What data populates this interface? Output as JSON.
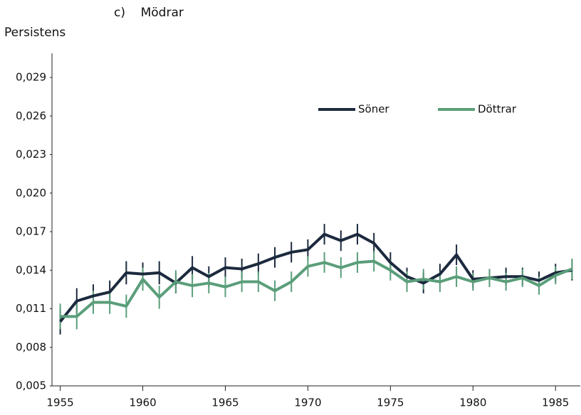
{
  "chart_data": {
    "type": "line",
    "title": "c)    Mödrar",
    "y_label": "Persistens",
    "x": [
      1955,
      1956,
      1957,
      1958,
      1959,
      1960,
      1961,
      1962,
      1963,
      1964,
      1965,
      1966,
      1967,
      1968,
      1969,
      1970,
      1971,
      1972,
      1973,
      1974,
      1975,
      1976,
      1977,
      1978,
      1979,
      1980,
      1981,
      1982,
      1983,
      1984,
      1985,
      1986
    ],
    "series": [
      {
        "name": "Söner",
        "color": "#1c2a3e",
        "values": [
          0.01,
          0.0116,
          0.012,
          0.0123,
          0.0138,
          0.0137,
          0.0138,
          0.013,
          0.0142,
          0.0135,
          0.0142,
          0.0141,
          0.0145,
          0.015,
          0.0154,
          0.0156,
          0.0168,
          0.0163,
          0.0168,
          0.0161,
          0.0146,
          0.0135,
          0.013,
          0.0137,
          0.0152,
          0.0133,
          0.0134,
          0.0135,
          0.0135,
          0.0132,
          0.0138,
          0.014
        ],
        "errors": [
          0.001,
          0.001,
          0.0009,
          0.0009,
          0.0009,
          0.0009,
          0.0009,
          0.0008,
          0.0009,
          0.0008,
          0.0008,
          0.0008,
          0.0008,
          0.0008,
          0.0008,
          0.0008,
          0.0008,
          0.0008,
          0.0008,
          0.0008,
          0.0008,
          0.0007,
          0.0008,
          0.0008,
          0.0008,
          0.0007,
          0.0007,
          0.0007,
          0.0007,
          0.0007,
          0.0007,
          0.0008
        ]
      },
      {
        "name": "Döttrar",
        "color": "#5a9e7a",
        "values": [
          0.0104,
          0.0104,
          0.0115,
          0.0115,
          0.0112,
          0.0133,
          0.0119,
          0.0131,
          0.0128,
          0.013,
          0.0127,
          0.0131,
          0.0131,
          0.0124,
          0.0131,
          0.0143,
          0.0146,
          0.0142,
          0.0146,
          0.0147,
          0.014,
          0.0131,
          0.0133,
          0.0131,
          0.0135,
          0.0131,
          0.0134,
          0.0131,
          0.0134,
          0.0128,
          0.0136,
          0.0141
        ],
        "errors": [
          0.001,
          0.001,
          0.0009,
          0.0009,
          0.0009,
          0.0009,
          0.0009,
          0.0009,
          0.0009,
          0.0008,
          0.0008,
          0.0008,
          0.0008,
          0.0008,
          0.0008,
          0.0008,
          0.0008,
          0.0008,
          0.0008,
          0.0008,
          0.0008,
          0.0008,
          0.0008,
          0.0008,
          0.0008,
          0.0007,
          0.0007,
          0.0007,
          0.0007,
          0.0007,
          0.0007,
          0.0008
        ]
      }
    ],
    "xlim": [
      1954.5,
      1986.5
    ],
    "xticks": [
      1955,
      1960,
      1965,
      1970,
      1975,
      1980,
      1985
    ],
    "ylim": [
      0.005,
      0.031
    ],
    "yticks": [
      {
        "value": 0.005,
        "label": "0,005"
      },
      {
        "value": 0.008,
        "label": "0,008"
      },
      {
        "value": 0.011,
        "label": "0,011"
      },
      {
        "value": 0.014,
        "label": "0,014"
      },
      {
        "value": 0.017,
        "label": "0,017"
      },
      {
        "value": 0.02,
        "label": "0,020"
      },
      {
        "value": 0.023,
        "label": "0,023"
      },
      {
        "value": 0.026,
        "label": "0,026"
      },
      {
        "value": 0.029,
        "label": "0,029"
      }
    ],
    "grid": false,
    "legend": "top-right"
  }
}
